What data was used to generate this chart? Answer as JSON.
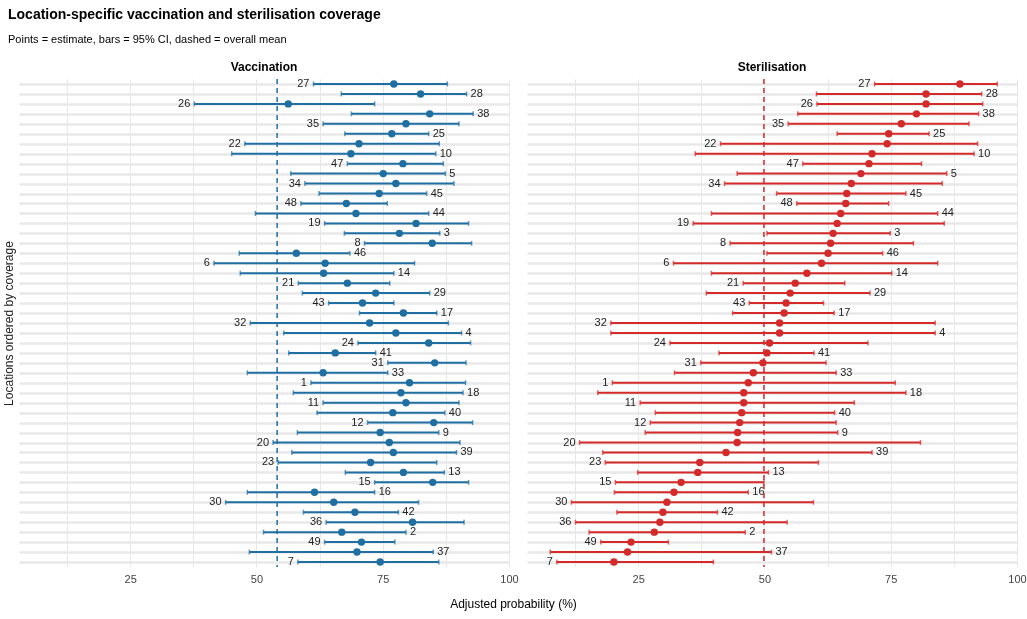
{
  "chart_data": [
    {
      "type": "scatter",
      "orientation": "horizontal",
      "title": "Location-specific vaccination and sterilisation coverage",
      "subtitle": "Points = estimate, bars = 95% CI, dashed = overall mean",
      "xlabel": "Adjusted probability (%)",
      "ylabel": "Locations ordered by coverage",
      "categories": [
        "27",
        "28",
        "26",
        "38",
        "35",
        "25",
        "22",
        "10",
        "47",
        "5",
        "34",
        "45",
        "48",
        "44",
        "19",
        "3",
        "8",
        "46",
        "6",
        "14",
        "21",
        "29",
        "43",
        "17",
        "32",
        "4",
        "24",
        "41",
        "31",
        "33",
        "1",
        "18",
        "11",
        "40",
        "12",
        "9",
        "20",
        "39",
        "23",
        "13",
        "15",
        "16",
        "30",
        "42",
        "36",
        "2",
        "49",
        "37",
        "7"
      ],
      "series": [
        {
          "name": "Vaccination",
          "color": "#1f6fa3",
          "values": [
            77.2,
            82.5,
            56.3,
            84.3,
            79.6,
            76.8,
            70.3,
            68.7,
            79.0,
            75.1,
            77.6,
            74.3,
            67.8,
            69.7,
            81.6,
            78.3,
            84.8,
            57.9,
            63.6,
            63.3,
            68.0,
            73.6,
            71.0,
            79.1,
            72.4,
            77.6,
            84.1,
            65.6,
            85.3,
            63.2,
            80.3,
            78.6,
            79.6,
            77.0,
            85.1,
            74.5,
            76.3,
            77.1,
            72.6,
            79.1,
            84.9,
            61.5,
            65.3,
            69.5,
            80.9,
            66.9,
            70.8,
            69.9,
            74.5
          ],
          "errors": [
            [
              61.3,
              87.8
            ],
            [
              66.8,
              91.6
            ],
            [
              37.7,
              73.4
            ],
            [
              68.8,
              92.9
            ],
            [
              63.2,
              90.1
            ],
            [
              67.5,
              84.1
            ],
            [
              47.7,
              86.2
            ],
            [
              45.1,
              85.5
            ],
            [
              68.0,
              87.0
            ],
            [
              56.8,
              87.4
            ],
            [
              59.6,
              89.1
            ],
            [
              62.4,
              83.7
            ],
            [
              58.8,
              75.9
            ],
            [
              49.8,
              84.1
            ],
            [
              63.5,
              92.0
            ],
            [
              67.4,
              86.3
            ],
            [
              71.4,
              92.6
            ],
            [
              46.6,
              68.5
            ],
            [
              41.6,
              81.3
            ],
            [
              46.8,
              77.2
            ],
            [
              58.3,
              76.4
            ],
            [
              59.1,
              84.3
            ],
            [
              64.3,
              77.2
            ],
            [
              70.4,
              85.7
            ],
            [
              48.8,
              88.0
            ],
            [
              55.4,
              90.6
            ],
            [
              70.1,
              92.4
            ],
            [
              56.4,
              73.6
            ],
            [
              76.0,
              91.5
            ],
            [
              48.2,
              76.0
            ],
            [
              60.8,
              91.4
            ],
            [
              57.3,
              90.9
            ],
            [
              63.2,
              90.1
            ],
            [
              62.0,
              87.3
            ],
            [
              72.0,
              92.8
            ],
            [
              58.1,
              86.1
            ],
            [
              53.3,
              90.3
            ],
            [
              57.0,
              89.6
            ],
            [
              54.3,
              85.7
            ],
            [
              67.6,
              87.2
            ],
            [
              73.4,
              92.0
            ],
            [
              48.2,
              73.4
            ],
            [
              43.9,
              82.1
            ],
            [
              59.3,
              78.1
            ],
            [
              63.8,
              91.1
            ],
            [
              51.4,
              79.6
            ],
            [
              63.5,
              77.4
            ],
            [
              48.6,
              85.0
            ],
            [
              58.2,
              86.1
            ]
          ]
        }
      ],
      "xlim": [
        3,
        100
      ],
      "xticks": [
        {
          "value": 12.5,
          "label": null
        },
        25,
        {
          "value": 37.5,
          "label": null
        },
        50,
        {
          "value": 62.5,
          "label": null
        },
        75,
        {
          "value": 87.5,
          "label": null
        },
        100
      ],
      "ref_lines": [
        {
          "axis": "x",
          "value": 54.1,
          "color": "#1f6fa3",
          "line_style": "dashed"
        }
      ],
      "grid": true,
      "marker": "circle",
      "tick_labels": "x"
    },
    {
      "type": "scatter",
      "orientation": "horizontal",
      "categories": [
        "27",
        "28",
        "26",
        "38",
        "35",
        "25",
        "22",
        "10",
        "47",
        "5",
        "34",
        "45",
        "48",
        "44",
        "19",
        "3",
        "8",
        "46",
        "6",
        "14",
        "21",
        "29",
        "43",
        "17",
        "32",
        "4",
        "24",
        "41",
        "31",
        "33",
        "1",
        "18",
        "11",
        "40",
        "12",
        "9",
        "20",
        "39",
        "23",
        "13",
        "15",
        "16",
        "30",
        "42",
        "36",
        "2",
        "49",
        "37",
        "7"
      ],
      "series": [
        {
          "name": "Sterilisation",
          "color": "#d42a2a",
          "values": [
            88.7,
            82.0,
            82.0,
            80.1,
            77.1,
            74.6,
            74.3,
            71.3,
            70.7,
            69.1,
            67.2,
            66.3,
            66.1,
            65.1,
            64.4,
            63.6,
            63.1,
            62.6,
            61.3,
            58.4,
            56.1,
            55.1,
            54.3,
            53.9,
            53.0,
            53.0,
            51.0,
            50.5,
            49.7,
            47.8,
            46.8,
            45.9,
            45.9,
            45.5,
            45.1,
            44.7,
            44.6,
            42.4,
            37.2,
            36.8,
            33.5,
            32.1,
            30.7,
            29.9,
            29.3,
            28.2,
            23.6,
            22.9,
            20.2
          ],
          "errors": [
            [
              71.8,
              96.1
            ],
            [
              60.3,
              93.0
            ],
            [
              60.4,
              93.2
            ],
            [
              56.6,
              92.4
            ],
            [
              54.7,
              90.5
            ],
            [
              64.4,
              82.6
            ],
            [
              41.3,
              92.2
            ],
            [
              36.3,
              91.5
            ],
            [
              57.6,
              81.1
            ],
            [
              44.6,
              86.1
            ],
            [
              42.1,
              85.2
            ],
            [
              52.4,
              78.0
            ],
            [
              56.4,
              74.6
            ],
            [
              39.5,
              84.3
            ],
            [
              35.9,
              85.6
            ],
            [
              50.5,
              74.9
            ],
            [
              43.2,
              79.5
            ],
            [
              50.5,
              73.4
            ],
            [
              32.0,
              84.3
            ],
            [
              39.5,
              75.2
            ],
            [
              45.8,
              65.9
            ],
            [
              38.5,
              70.9
            ],
            [
              47.0,
              61.7
            ],
            [
              43.7,
              63.8
            ],
            [
              19.6,
              83.8
            ],
            [
              19.6,
              83.8
            ],
            [
              31.3,
              70.5
            ],
            [
              41.0,
              59.8
            ],
            [
              37.4,
              62.2
            ],
            [
              32.2,
              64.2
            ],
            [
              19.9,
              75.9
            ],
            [
              17.0,
              78.0
            ],
            [
              25.4,
              67.8
            ],
            [
              28.4,
              63.9
            ],
            [
              27.4,
              64.2
            ],
            [
              26.4,
              64.5
            ],
            [
              13.4,
              80.9
            ],
            [
              18.0,
              71.3
            ],
            [
              18.5,
              60.7
            ],
            [
              24.9,
              50.8
            ],
            [
              20.5,
              49.9
            ],
            [
              20.3,
              46.8
            ],
            [
              11.8,
              59.7
            ],
            [
              20.8,
              40.7
            ],
            [
              12.6,
              54.5
            ],
            [
              15.3,
              46.2
            ],
            [
              17.6,
              31.0
            ],
            [
              7.6,
              51.4
            ],
            [
              8.9,
              39.9
            ]
          ]
        }
      ],
      "xlim": [
        3,
        100
      ],
      "xticks": [
        {
          "value": 12.5,
          "label": null
        },
        25,
        {
          "value": 37.5,
          "label": null
        },
        50,
        {
          "value": 62.5,
          "label": null
        },
        75,
        {
          "value": 87.5,
          "label": null
        },
        100
      ],
      "ref_lines": [
        {
          "axis": "x",
          "value": 49.9,
          "color": "#d42a2a",
          "line_style": "dashed"
        }
      ],
      "grid": true,
      "marker": "circle",
      "tick_labels": "x"
    }
  ]
}
